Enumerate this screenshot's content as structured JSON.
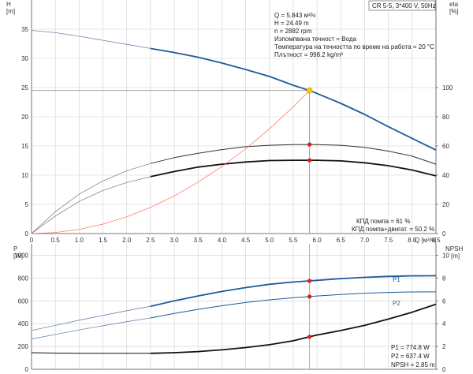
{
  "title_box": "CR 5-5, 3*400 V, 50Hz",
  "info_top": [
    "Q = 5.843 м³/ч",
    "H = 24.49 m",
    "n = 2882 rpm",
    "Изпомпвана течност = Вода",
    "Температура на течността по време на работа = 20 °C",
    "Плътност = 998.2 kg/m³"
  ],
  "info_top_right": [
    "КПД помпа = 61 %",
    "КПД помпа+двигат. = 50.2 %"
  ],
  "info_bottom": [
    "P1 = 774.8 W",
    "P2 = 637.4 W",
    "NPSH = 2.85 m"
  ],
  "colors": {
    "head": "#1f5a9a",
    "eff": "#333333",
    "system": "#ff6a50",
    "duty": "#e01b1b",
    "op": "#f5c518",
    "grid": "#cfcfcf",
    "thin": "#6b88ad"
  },
  "chart_data": [
    {
      "type": "line",
      "x_label": "Q [м³/ч]",
      "y_left_label": [
        "H",
        "[m]"
      ],
      "y_right_label": [
        "eta",
        "[%]"
      ],
      "xlim": [
        0,
        8.5
      ],
      "x_ticks": [
        "0",
        "0.5",
        "1.0",
        "1.5",
        "2.0",
        "2.5",
        "3.0",
        "3.5",
        "4.0",
        "4.5",
        "5.0",
        "5.5",
        "6.0",
        "6.5",
        "7.0",
        "7.5",
        "8.0",
        "8.5"
      ],
      "y_left_ticks": [
        "0",
        "5",
        "10",
        "15",
        "20",
        "25",
        "30",
        "35"
      ],
      "y_right_ticks": [
        "0",
        "20",
        "40",
        "60",
        "80",
        "100"
      ],
      "ylim_left": [
        0,
        40
      ],
      "ylim_right": [
        0,
        160
      ],
      "series": [
        {
          "kind": "head",
          "x": [
            2.5,
            3.0,
            3.5,
            4.0,
            4.5,
            5.0,
            5.5,
            5.843,
            6.0,
            6.5,
            7.0,
            7.5,
            8.0,
            8.5
          ],
          "y": [
            31.7,
            31.0,
            30.2,
            29.2,
            28.1,
            26.9,
            25.4,
            24.49,
            24.0,
            22.3,
            20.4,
            18.3,
            16.3,
            14.3
          ]
        },
        {
          "kind": "head_ext",
          "x": [
            0,
            0.5,
            1.0,
            1.5,
            2.0,
            2.5
          ],
          "y": [
            34.8,
            34.4,
            33.8,
            33.1,
            32.4,
            31.7
          ]
        },
        {
          "kind": "eta_pump",
          "axis": "right",
          "x": [
            2.5,
            3.0,
            3.5,
            4.0,
            4.5,
            5.0,
            5.5,
            5.843,
            6.0,
            6.5,
            7.0,
            7.5,
            8.0,
            8.5
          ],
          "y": [
            48,
            52,
            55,
            57.5,
            59.5,
            60.5,
            61,
            61,
            61,
            60.5,
            59,
            56.5,
            53,
            47.5
          ]
        },
        {
          "kind": "eta_pump_ext",
          "axis": "right",
          "x": [
            0,
            0.5,
            1.0,
            1.5,
            2.0,
            2.5
          ],
          "y": [
            0,
            15,
            27,
            36,
            43,
            48
          ]
        },
        {
          "kind": "eta_total",
          "axis": "right",
          "x": [
            2.5,
            3.0,
            3.5,
            4.0,
            4.5,
            5.0,
            5.5,
            5.843,
            6.0,
            6.5,
            7.0,
            7.5,
            8.0,
            8.5
          ],
          "y": [
            39,
            42.5,
            45.5,
            47.5,
            49,
            50,
            50.2,
            50.2,
            50.2,
            49.8,
            48.5,
            46.5,
            43.5,
            39.5
          ]
        },
        {
          "kind": "eta_total_ext",
          "axis": "right",
          "x": [
            0,
            0.5,
            1.0,
            1.5,
            2.0,
            2.5
          ],
          "y": [
            0,
            12,
            22,
            29.5,
            35,
            39
          ]
        },
        {
          "kind": "system",
          "x": [
            0,
            0.5,
            1.0,
            1.5,
            2.0,
            2.5,
            3.0,
            3.5,
            4.0,
            4.5,
            5.0,
            5.5,
            5.843
          ],
          "y": [
            0,
            0.18,
            0.72,
            1.61,
            2.87,
            4.48,
            6.45,
            8.78,
            11.47,
            14.52,
            17.93,
            21.69,
            24.49
          ]
        }
      ],
      "duty_points": [
        {
          "x": 5.843,
          "y": 15.25
        },
        {
          "x": 5.843,
          "y": 12.55
        }
      ],
      "op_point": {
        "x": 5.843,
        "y": 24.49
      }
    },
    {
      "type": "line",
      "x_label": "",
      "y_left_label": [
        "P",
        "[W]"
      ],
      "y_right_label": [
        "NPSH",
        "[m]"
      ],
      "xlim": [
        0,
        8.5
      ],
      "y_left_ticks": [
        "0",
        "200",
        "400",
        "600",
        "800",
        "1000"
      ],
      "y_right_ticks": [
        "0",
        "2",
        "4",
        "6",
        "8",
        "10"
      ],
      "ylim_left": [
        0,
        1100
      ],
      "ylim_right": [
        0,
        11
      ],
      "series": [
        {
          "name": "P1",
          "kind": "p1",
          "x": [
            2.5,
            3.0,
            3.5,
            4.0,
            4.5,
            5.0,
            5.5,
            5.843,
            6.0,
            6.5,
            7.0,
            7.5,
            8.0,
            8.5
          ],
          "y": [
            552,
            600,
            643,
            682,
            716,
            745,
            765,
            774.8,
            780,
            795,
            806,
            814,
            819,
            820
          ]
        },
        {
          "kind": "p1_ext",
          "x": [
            0,
            0.5,
            1.0,
            1.5,
            2.0,
            2.5
          ],
          "y": [
            340,
            385,
            430,
            472,
            513,
            552
          ]
        },
        {
          "name": "P2",
          "kind": "p2",
          "x": [
            2.5,
            3.0,
            3.5,
            4.0,
            4.5,
            5.0,
            5.5,
            5.843,
            6.0,
            6.5,
            7.0,
            7.5,
            8.0,
            8.5
          ],
          "y": [
            450,
            489,
            525,
            557,
            585,
            609,
            627,
            637.4,
            643,
            656,
            667,
            674,
            678,
            679
          ]
        },
        {
          "kind": "p2_ext",
          "x": [
            0,
            0.5,
            1.0,
            1.5,
            2.0,
            2.5
          ],
          "y": [
            265,
            305,
            345,
            382,
            417,
            450
          ]
        },
        {
          "kind": "npsh",
          "axis": "right",
          "x": [
            2.5,
            3.0,
            3.5,
            4.0,
            4.5,
            5.0,
            5.5,
            5.843,
            6.0,
            6.5,
            7.0,
            7.5,
            8.0,
            8.5
          ],
          "y": [
            1.4,
            1.45,
            1.55,
            1.7,
            1.9,
            2.15,
            2.5,
            2.85,
            3.0,
            3.4,
            3.85,
            4.4,
            5.0,
            5.7
          ]
        },
        {
          "kind": "npsh_ext",
          "axis": "right",
          "x": [
            0,
            0.5,
            1.0,
            1.5,
            2.0,
            2.5
          ],
          "y": [
            1.45,
            1.42,
            1.4,
            1.4,
            1.4,
            1.4
          ]
        }
      ],
      "duty_points": [
        {
          "x": 5.843,
          "y": 774.8
        },
        {
          "x": 5.843,
          "y": 637.4
        },
        {
          "x": 5.843,
          "y": 285
        }
      ]
    }
  ]
}
